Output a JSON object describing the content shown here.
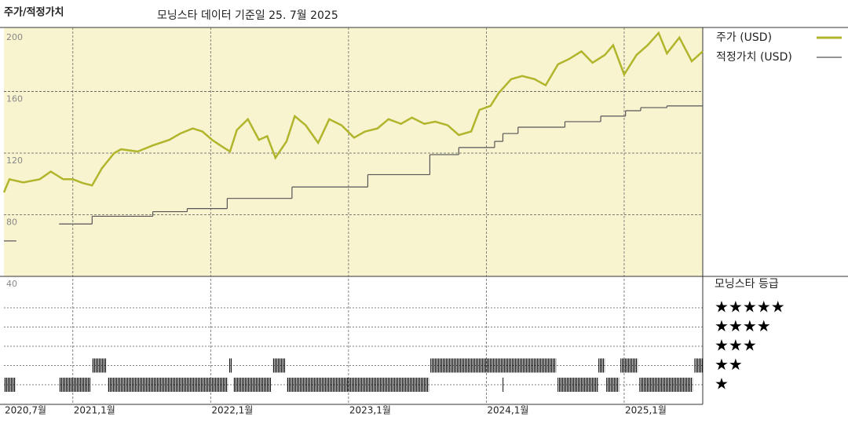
{
  "chart_data": {
    "type": "price-fair-value",
    "title": "주가/적정가치",
    "subtitle": "모닝스타 데이터 기준일 25. 7월 2025",
    "xlim": [
      2020.5,
      2025.57
    ],
    "xticks": [
      {
        "value": 2020.5,
        "label": "2020,7월"
      },
      {
        "value": 2021.0,
        "label": "2021,1월"
      },
      {
        "value": 2022.0,
        "label": "2022,1월"
      },
      {
        "value": 2023.0,
        "label": "2023,1월"
      },
      {
        "value": 2024.0,
        "label": "2024,1월"
      },
      {
        "value": 2025.0,
        "label": "2025,1월"
      }
    ],
    "ylim": [
      40,
      201.5
    ],
    "yticks": [
      40,
      80,
      120,
      160,
      200
    ],
    "grid": true,
    "background": "#f8f4d0",
    "series": [
      {
        "name": "주가 (USD)",
        "color": "#b0b52b",
        "style": "line",
        "x": [
          2020.5,
          2020.54,
          2020.64,
          2020.76,
          2020.84,
          2020.93,
          2021.0,
          2021.07,
          2021.14,
          2021.21,
          2021.3,
          2021.35,
          2021.47,
          2021.58,
          2021.7,
          2021.78,
          2021.87,
          2021.94,
          2022.01,
          2022.07,
          2022.14,
          2022.19,
          2022.27,
          2022.35,
          2022.41,
          2022.47,
          2022.55,
          2022.61,
          2022.69,
          2022.78,
          2022.86,
          2022.95,
          2023.04,
          2023.12,
          2023.21,
          2023.29,
          2023.38,
          2023.46,
          2023.55,
          2023.63,
          2023.72,
          2023.8,
          2023.89,
          2023.95,
          2024.03,
          2024.09,
          2024.18,
          2024.26,
          2024.35,
          2024.43,
          2024.52,
          2024.6,
          2024.69,
          2024.77,
          2024.86,
          2024.92,
          2025.0,
          2025.09,
          2025.17,
          2025.25,
          2025.31,
          2025.4,
          2025.49,
          2025.57
        ],
        "values": [
          94.5,
          103,
          101,
          103,
          108,
          103,
          103,
          100.6,
          99,
          110,
          120,
          122.5,
          121,
          125,
          128.6,
          132.7,
          136,
          134,
          128.6,
          125,
          121,
          135,
          142,
          128.6,
          131,
          117,
          127.6,
          144,
          138,
          126.6,
          142,
          138,
          130,
          134,
          136,
          142,
          139,
          143,
          139,
          140.4,
          138,
          131.7,
          134,
          148,
          150.6,
          159,
          168,
          170,
          168,
          164,
          177.6,
          181,
          186,
          178.6,
          183.7,
          190,
          171,
          183.7,
          190,
          198,
          184.7,
          195,
          179.6,
          186
        ]
      },
      {
        "name": "적정가치 (USD)",
        "color": "#555555",
        "style": "step",
        "x": [
          2020.5,
          2020.59,
          2020.9,
          2021.14,
          2021.58,
          2021.83,
          2022.12,
          2022.59,
          2023.14,
          2023.59,
          2023.8,
          2024.06,
          2024.12,
          2024.23,
          2024.57,
          2024.83,
          2025.01,
          2025.12,
          2025.31
        ],
        "values": [
          63,
          null,
          74,
          79,
          82,
          84,
          90.6,
          98,
          106,
          119,
          123.6,
          127.6,
          132.7,
          136.8,
          140.4,
          144,
          147.5,
          149.5,
          150.6
        ]
      }
    ],
    "ratings": {
      "title": "모닝스타 등급",
      "levels": [
        5,
        4,
        3,
        2,
        1
      ],
      "labels": [
        "★★★★★",
        "★★★★",
        "★★★",
        "★★",
        "★"
      ],
      "start": [
        2020.5,
        2020.9,
        2021.138,
        2021.252,
        2022.135,
        2022.164,
        2022.449,
        2022.551,
        2023.594,
        2024.118,
        2024.517,
        2024.813,
        2024.87,
        2024.973,
        2025.11,
        2025.509
      ],
      "end": [
        2020.585,
        2021.127,
        2021.241,
        2022.124,
        2022.152,
        2022.437,
        2022.54,
        2023.583,
        2024.506,
        2024.124,
        2024.813,
        2024.859,
        2024.962,
        2025.098,
        2025.497,
        2025.571
      ],
      "values": [
        1,
        1,
        2,
        1,
        2,
        1,
        2,
        1,
        2,
        1,
        1,
        2,
        1,
        2,
        1,
        2
      ]
    }
  }
}
